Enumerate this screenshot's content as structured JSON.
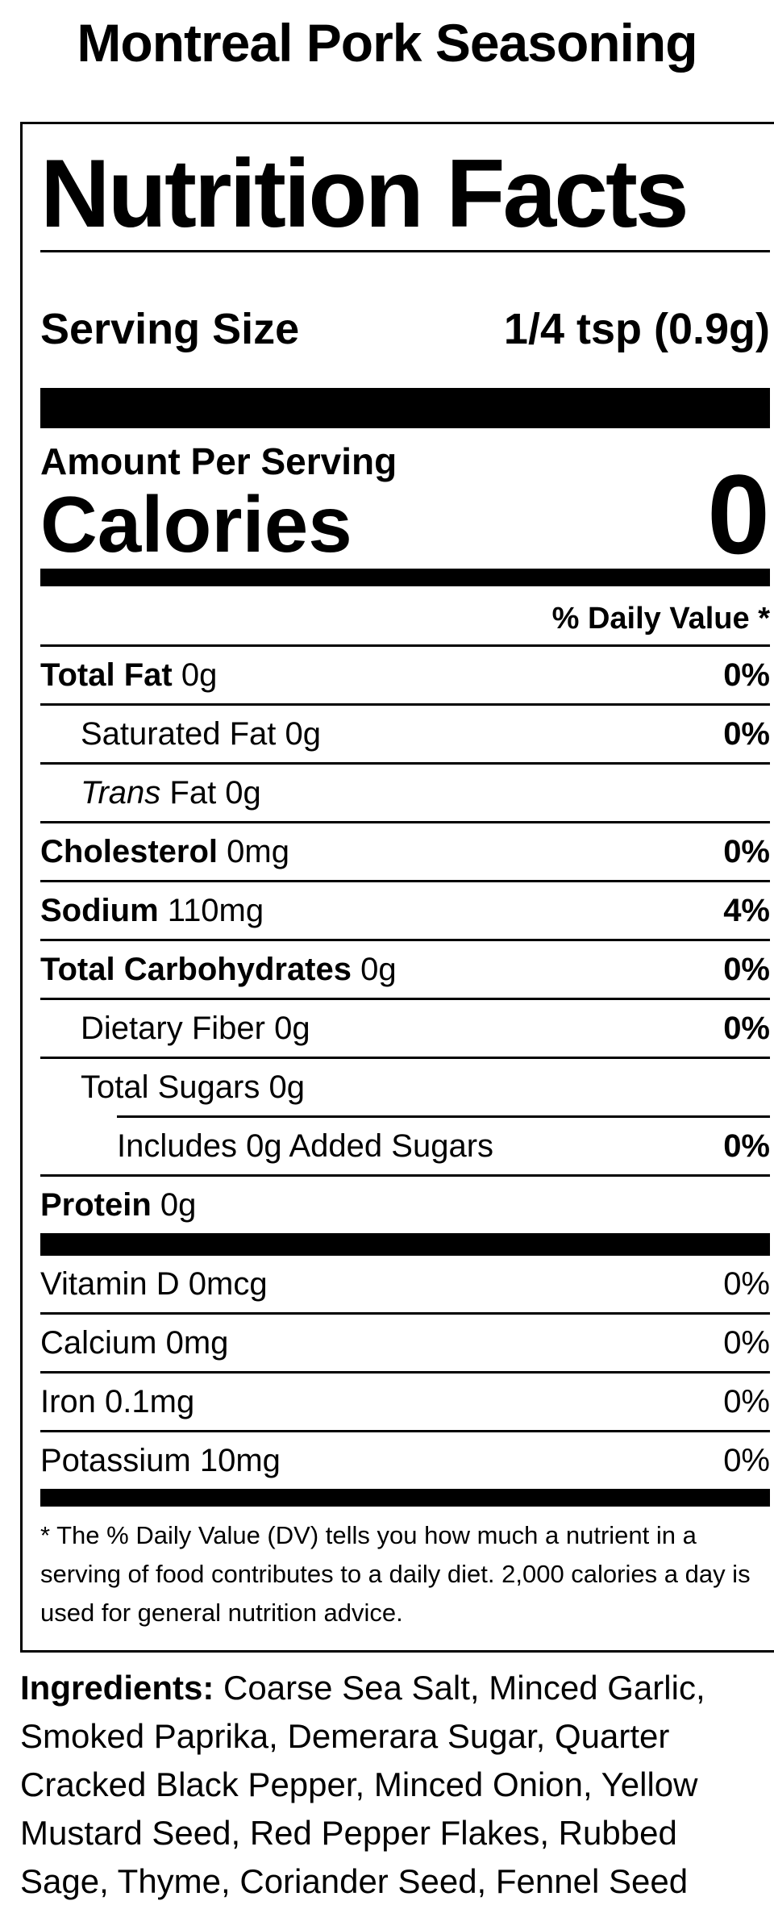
{
  "page": {
    "title": "Montreal Pork Seasoning"
  },
  "colors": {
    "text": "#000000",
    "background": "#ffffff"
  },
  "label": {
    "title": "Nutrition Facts",
    "serving_label": "Serving Size",
    "serving_value": "1/4 tsp (0.9g)",
    "amount_per_serving": "Amount Per Serving",
    "calories_label": "Calories",
    "calories_value": "0",
    "daily_value_header": "% Daily Value *",
    "nutrients": [
      {
        "label": "Total Fat",
        "amount": "0g",
        "dv": "0%",
        "bold": true,
        "italic": false,
        "indent": 0,
        "dv_bold": true,
        "divider_after": "full"
      },
      {
        "label": "Saturated Fat",
        "amount": "0g",
        "dv": "0%",
        "bold": false,
        "italic": false,
        "indent": 1,
        "dv_bold": true,
        "divider_after": "full"
      },
      {
        "label": "Trans",
        "amount": "Fat 0g",
        "dv": "",
        "bold": false,
        "italic": true,
        "indent": 1,
        "dv_bold": false,
        "divider_after": "full"
      },
      {
        "label": "Cholesterol",
        "amount": "0mg",
        "dv": "0%",
        "bold": true,
        "italic": false,
        "indent": 0,
        "dv_bold": true,
        "divider_after": "full"
      },
      {
        "label": "Sodium",
        "amount": "110mg",
        "dv": "4%",
        "bold": true,
        "italic": false,
        "indent": 0,
        "dv_bold": true,
        "divider_after": "full"
      },
      {
        "label": "Total Carbohydrates",
        "amount": "0g",
        "dv": "0%",
        "bold": true,
        "italic": false,
        "indent": 0,
        "dv_bold": true,
        "divider_after": "full"
      },
      {
        "label": "Dietary Fiber",
        "amount": "0g",
        "dv": "0%",
        "bold": false,
        "italic": false,
        "indent": 1,
        "dv_bold": true,
        "divider_after": "full"
      },
      {
        "label": "Total Sugars",
        "amount": "0g",
        "dv": "",
        "bold": false,
        "italic": false,
        "indent": 1,
        "dv_bold": false,
        "divider_after": "indent"
      },
      {
        "label": "Includes 0g Added Sugars",
        "amount": "",
        "dv": "0%",
        "bold": false,
        "italic": false,
        "indent": 2,
        "dv_bold": true,
        "divider_after": "full"
      },
      {
        "label": "Protein",
        "amount": "0g",
        "dv": "",
        "bold": true,
        "italic": false,
        "indent": 0,
        "dv_bold": false,
        "divider_after": "none"
      }
    ],
    "micronutrients": [
      {
        "label": "Vitamin D",
        "amount": "0mcg",
        "dv": "0%",
        "divider_after": "full"
      },
      {
        "label": "Calcium",
        "amount": "0mg",
        "dv": "0%",
        "divider_after": "full"
      },
      {
        "label": "Iron",
        "amount": "0.1mg",
        "dv": "0%",
        "divider_after": "full"
      },
      {
        "label": "Potassium",
        "amount": "10mg",
        "dv": "0%",
        "divider_after": "none"
      }
    ],
    "footnote": "* The % Daily Value (DV) tells you how much a nutrient in a serving of food contributes to a daily diet. 2,000 calories a day is used for general nutrition advice."
  },
  "ingredients": {
    "label": "Ingredients:",
    "text": "Coarse Sea Salt, Minced Garlic, Smoked Paprika, Demerara Sugar, Quarter Cracked Black Pepper, Minced Onion, Yellow Mustard Seed, Red Pepper Flakes, Rubbed Sage, Thyme, Coriander Seed, Fennel Seed"
  }
}
